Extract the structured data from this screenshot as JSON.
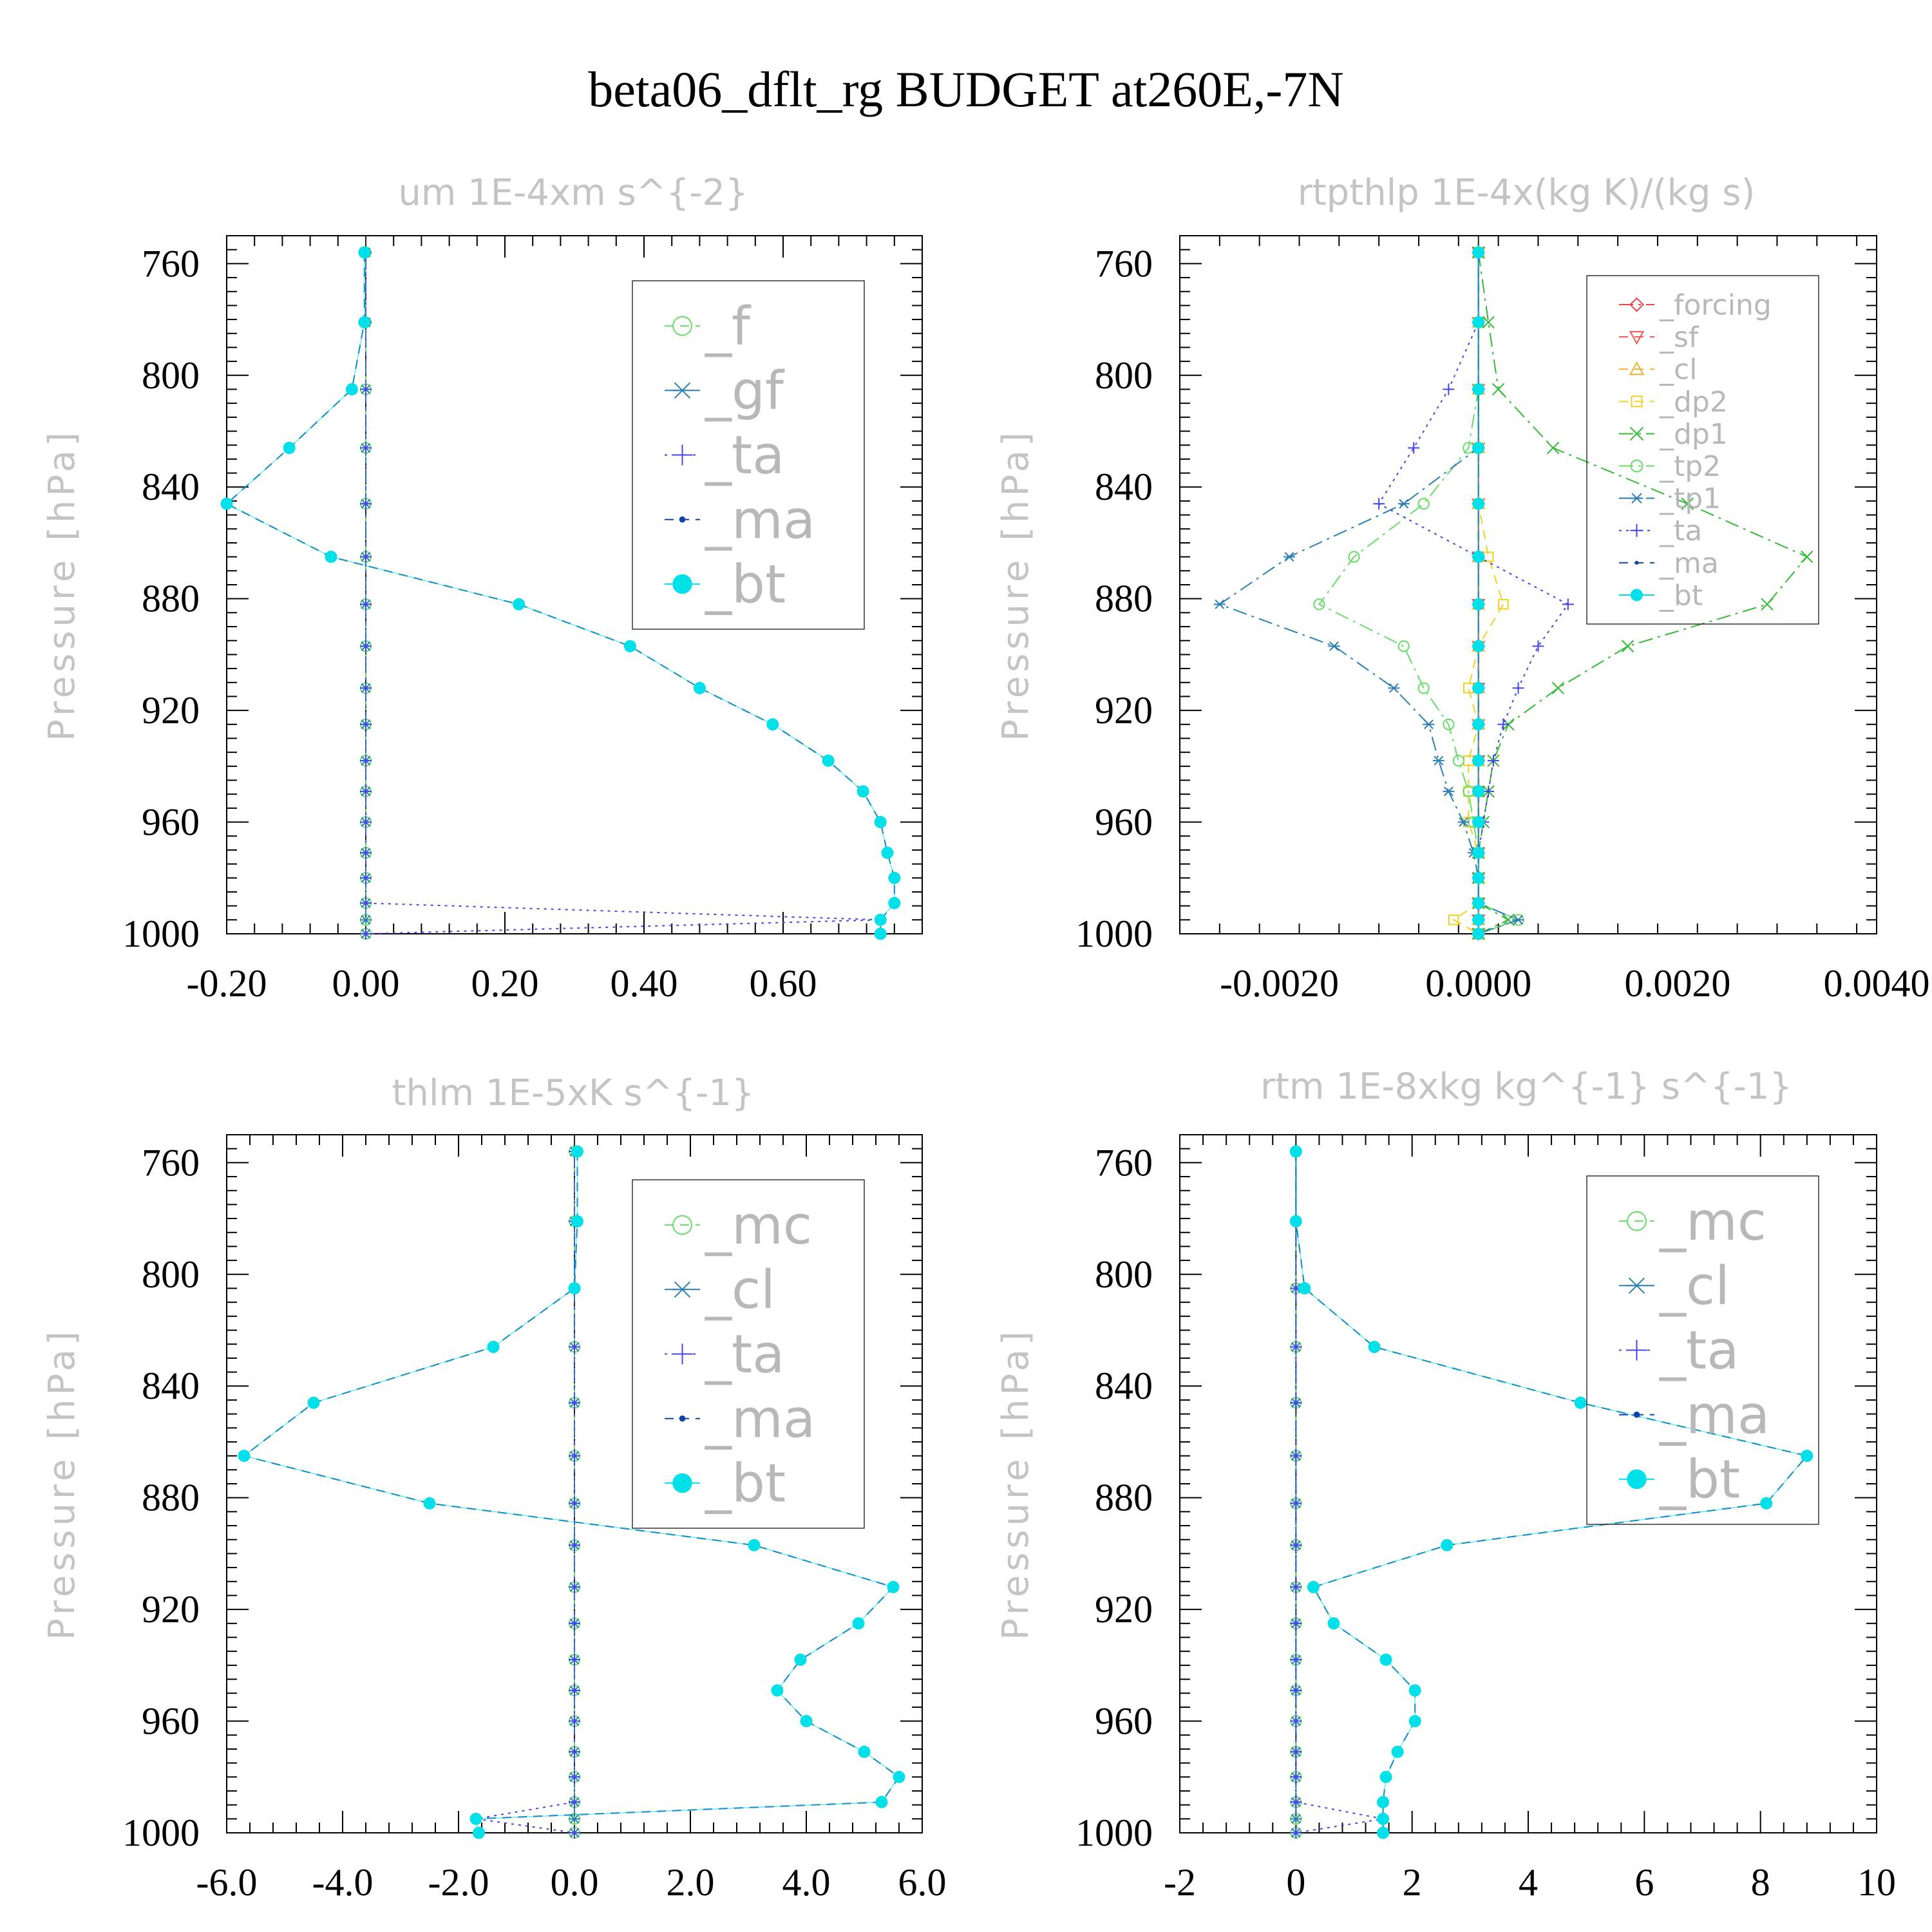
{
  "title": "beta06_dflt_rg  BUDGET at260E,-7N",
  "chart_data": [
    {
      "type": "line",
      "title": "um  1E-4xm s^{-2}",
      "ylabel": "Pressure [hPa]",
      "ylim": [
        1000,
        750
      ],
      "yticks": [
        760,
        800,
        840,
        880,
        920,
        960,
        1000
      ],
      "xlim": [
        -0.2,
        0.8
      ],
      "xticks": [
        -0.2,
        0.0,
        0.2,
        0.4,
        0.6
      ],
      "xtick_labels": [
        "-0.20",
        "0.00",
        "0.20",
        "0.40",
        "0.60"
      ],
      "legend": "top-right",
      "pressure": [
        756,
        781,
        805,
        826,
        846,
        865,
        882,
        897,
        912,
        925,
        938,
        949,
        960,
        971,
        980,
        989,
        995,
        1000
      ],
      "series": [
        {
          "name": "_f",
          "color": "#66dd66",
          "marker": "circle",
          "dash": "dash",
          "values": [
            0,
            0,
            0,
            0,
            0,
            0,
            0,
            0,
            0,
            0,
            0,
            0,
            0,
            0,
            0,
            0,
            0,
            0
          ]
        },
        {
          "name": "_gf",
          "color": "#2a7fb5",
          "marker": "asterisk",
          "dash": "dashdot",
          "values": [
            0,
            0,
            0,
            0,
            0,
            0,
            0,
            0,
            0,
            0,
            0,
            0,
            0,
            0,
            0,
            0,
            0,
            0
          ]
        },
        {
          "name": "_ta",
          "color": "#4444ee",
          "marker": "plus",
          "dash": "dot",
          "values": [
            0,
            0,
            0,
            0,
            0,
            0,
            0,
            0,
            0,
            0,
            0,
            0,
            0,
            0,
            0,
            0,
            0.74,
            0
          ]
        },
        {
          "name": "_ma",
          "color": "#1144aa",
          "marker": "dot",
          "dash": "dash",
          "values": [
            -0.002,
            -0.002,
            -0.02,
            -0.11,
            -0.2,
            -0.05,
            0.22,
            0.38,
            0.48,
            0.585,
            0.665,
            0.715,
            0.74,
            0.75,
            0.76,
            0.76,
            0.74,
            0.74
          ]
        },
        {
          "name": "_bt",
          "color": "#00e0e8",
          "marker": "bigdot",
          "dash": "none",
          "values": [
            -0.002,
            -0.002,
            -0.02,
            -0.11,
            -0.2,
            -0.05,
            0.22,
            0.38,
            0.48,
            0.585,
            0.665,
            0.715,
            0.74,
            0.75,
            0.76,
            0.76,
            0.74,
            0.74
          ]
        }
      ]
    },
    {
      "type": "line",
      "title": "rtpthlp  1E-4x(kg K)/(kg s)",
      "ylabel": "Pressure [hPa]",
      "ylim": [
        1000,
        750
      ],
      "yticks": [
        760,
        800,
        840,
        880,
        920,
        960,
        1000
      ],
      "xlim": [
        -0.003,
        0.004
      ],
      "xticks": [
        -0.002,
        0.0,
        0.002,
        0.004
      ],
      "xtick_labels": [
        "-0.0020",
        "0.0000",
        "0.0020",
        "0.0040"
      ],
      "legend": "top-right",
      "pressure": [
        756,
        781,
        805,
        826,
        846,
        865,
        882,
        897,
        912,
        925,
        938,
        949,
        960,
        971,
        980,
        989,
        995,
        1000
      ],
      "series": [
        {
          "name": "_forcing",
          "color": "#ee4444",
          "marker": "diamond",
          "dash": "dashdot",
          "values": [
            0,
            0,
            0,
            0,
            0,
            0,
            0,
            0,
            0,
            0,
            0,
            0,
            0,
            0,
            0,
            0,
            0,
            0
          ]
        },
        {
          "name": "_sf",
          "color": "#ee5555",
          "marker": "triangle-down",
          "dash": "dash",
          "values": [
            0,
            0,
            0,
            0,
            0,
            0,
            0,
            0,
            0,
            0,
            0,
            0,
            0,
            0,
            0,
            0,
            0,
            0
          ]
        },
        {
          "name": "_cl",
          "color": "#f0b030",
          "marker": "triangle",
          "dash": "dash",
          "values": [
            0,
            0,
            0,
            0,
            0,
            0,
            0,
            0,
            0,
            0,
            0,
            0,
            0,
            0,
            0,
            0,
            0,
            0
          ]
        },
        {
          "name": "_dp2",
          "color": "#f0d020",
          "marker": "square",
          "dash": "dash",
          "values": [
            0,
            0,
            0,
            0,
            0,
            0.0001,
            0.00025,
            0,
            -0.0001,
            0,
            -0.0001,
            -0.0001,
            -0.0001,
            0,
            0,
            0,
            -0.00025,
            0
          ]
        },
        {
          "name": "_dp1",
          "color": "#33bb33",
          "marker": "cross",
          "dash": "dashdot",
          "values": [
            0,
            0.0001,
            0.0002,
            0.00075,
            0.0021,
            0.0033,
            0.0029,
            0.0015,
            0.0008,
            0.0003,
            0.00015,
            0.0001,
            5e-05,
            0,
            0,
            0,
            0.0003,
            0
          ]
        },
        {
          "name": "_tp2",
          "color": "#66dd66",
          "marker": "circle",
          "dash": "dashdot",
          "values": [
            0,
            0,
            0,
            -0.0001,
            -0.00055,
            -0.00125,
            -0.0016,
            -0.00075,
            -0.00055,
            -0.0003,
            -0.0002,
            -0.0001,
            -5e-05,
            0,
            0,
            0,
            0.0004,
            0
          ]
        },
        {
          "name": "_tp1",
          "color": "#2a7fb5",
          "marker": "asterisk",
          "dash": "dashdot",
          "values": [
            0,
            0,
            0,
            0,
            -0.00075,
            -0.0019,
            -0.0026,
            -0.00145,
            -0.00085,
            -0.0005,
            -0.0004,
            -0.0003,
            -0.00015,
            -5e-05,
            0,
            0,
            0.0004,
            0
          ]
        },
        {
          "name": "_ta",
          "color": "#4444ee",
          "marker": "plus",
          "dash": "dot",
          "values": [
            0,
            0,
            -0.0003,
            -0.00065,
            -0.001,
            0,
            0.0009,
            0.0006,
            0.0004,
            0.00025,
            0.00015,
            0.0001,
            5e-05,
            0,
            0,
            0,
            0,
            0
          ]
        },
        {
          "name": "_ma",
          "color": "#1144aa",
          "marker": "dot",
          "dash": "dash",
          "values": [
            0,
            0,
            0,
            0,
            0,
            0,
            0,
            0,
            0,
            0,
            0,
            0,
            0,
            0,
            0,
            0,
            0,
            0
          ]
        },
        {
          "name": "_bt",
          "color": "#00e0e8",
          "marker": "bigdot",
          "dash": "none",
          "values": [
            0,
            0,
            0,
            0,
            0,
            0,
            0,
            0,
            0,
            0,
            0,
            0,
            0,
            0,
            0,
            0,
            0,
            0
          ]
        }
      ]
    },
    {
      "type": "line",
      "title": "thlm  1E-5xK s^{-1}",
      "ylabel": "Pressure [hPa]",
      "ylim": [
        1000,
        750
      ],
      "yticks": [
        760,
        800,
        840,
        880,
        920,
        960,
        1000
      ],
      "xlim": [
        -6,
        6
      ],
      "xticks": [
        -6,
        -4,
        -2,
        0,
        2,
        4,
        6
      ],
      "xtick_labels": [
        "-6.0",
        "-4.0",
        "-2.0",
        "0.0",
        "2.0",
        "4.0",
        "6.0"
      ],
      "legend": "top-right",
      "pressure": [
        756,
        781,
        805,
        826,
        846,
        865,
        882,
        897,
        912,
        925,
        938,
        949,
        960,
        971,
        980,
        989,
        995,
        1000
      ],
      "series": [
        {
          "name": "_mc",
          "color": "#66dd66",
          "marker": "circle",
          "dash": "dash",
          "values": [
            0,
            0,
            0,
            0,
            0,
            0,
            0,
            0,
            0,
            0,
            0,
            0,
            0,
            0,
            0,
            0,
            0,
            0
          ]
        },
        {
          "name": "_cl",
          "color": "#2a7fb5",
          "marker": "asterisk",
          "dash": "dashdot",
          "values": [
            0,
            0,
            0,
            0,
            0,
            0,
            0,
            0,
            0,
            0,
            0,
            0,
            0,
            0,
            0,
            0,
            0,
            0
          ]
        },
        {
          "name": "_ta",
          "color": "#4444ee",
          "marker": "plus",
          "dash": "dot",
          "values": [
            0,
            0,
            0,
            0,
            0,
            0,
            0,
            0,
            0,
            0,
            0,
            0,
            0,
            0,
            0,
            0,
            -1.7,
            0
          ]
        },
        {
          "name": "_ma",
          "color": "#1144aa",
          "marker": "dot",
          "dash": "dash",
          "values": [
            0.05,
            0.05,
            0,
            -1.4,
            -4.5,
            -5.7,
            -2.5,
            3.1,
            5.5,
            4.9,
            3.9,
            3.5,
            4.0,
            5.0,
            5.6,
            5.3,
            -1.7,
            -1.65
          ]
        },
        {
          "name": "_bt",
          "color": "#00e0e8",
          "marker": "bigdot",
          "dash": "none",
          "values": [
            0.05,
            0.05,
            0,
            -1.4,
            -4.5,
            -5.7,
            -2.5,
            3.1,
            5.5,
            4.9,
            3.9,
            3.5,
            4.0,
            5.0,
            5.6,
            5.3,
            -1.7,
            -1.65
          ]
        }
      ]
    },
    {
      "type": "line",
      "title": "rtm  1E-8xkg kg^{-1} s^{-1}",
      "ylabel": "Pressure [hPa]",
      "ylim": [
        1000,
        750
      ],
      "yticks": [
        760,
        800,
        840,
        880,
        920,
        960,
        1000
      ],
      "xlim": [
        -2,
        10
      ],
      "xticks": [
        -2,
        0,
        2,
        4,
        6,
        8,
        10
      ],
      "xtick_labels": [
        "-2",
        "0",
        "2",
        "4",
        "6",
        "8",
        "10"
      ],
      "legend": "top-right",
      "pressure": [
        756,
        781,
        805,
        826,
        846,
        865,
        882,
        897,
        912,
        925,
        938,
        949,
        960,
        971,
        980,
        989,
        995,
        1000
      ],
      "series": [
        {
          "name": "_mc",
          "color": "#66dd66",
          "marker": "circle",
          "dash": "dash",
          "values": [
            0,
            0,
            0,
            0,
            0,
            0,
            0,
            0,
            0,
            0,
            0,
            0,
            0,
            0,
            0,
            0,
            0,
            0
          ]
        },
        {
          "name": "_cl",
          "color": "#2a7fb5",
          "marker": "asterisk",
          "dash": "dashdot",
          "values": [
            0,
            0,
            0,
            0,
            0,
            0,
            0,
            0,
            0,
            0,
            0,
            0,
            0,
            0,
            0,
            0,
            0,
            0
          ]
        },
        {
          "name": "_ta",
          "color": "#4444ee",
          "marker": "plus",
          "dash": "dot",
          "values": [
            0,
            0,
            0,
            0,
            0,
            0,
            0,
            0,
            0,
            0,
            0,
            0,
            0,
            0,
            0,
            0,
            1.5,
            0
          ]
        },
        {
          "name": "_ma",
          "color": "#1144aa",
          "marker": "dot",
          "dash": "dash",
          "values": [
            0,
            0,
            0.15,
            1.35,
            4.9,
            8.8,
            8.1,
            2.6,
            0.3,
            0.65,
            1.55,
            2.05,
            2.05,
            1.75,
            1.55,
            1.5,
            1.5,
            1.5
          ]
        },
        {
          "name": "_bt",
          "color": "#00e0e8",
          "marker": "bigdot",
          "dash": "none",
          "values": [
            0,
            0,
            0.15,
            1.35,
            4.9,
            8.8,
            8.1,
            2.6,
            0.3,
            0.65,
            1.55,
            2.05,
            2.05,
            1.75,
            1.55,
            1.5,
            1.5,
            1.5
          ]
        }
      ]
    }
  ]
}
